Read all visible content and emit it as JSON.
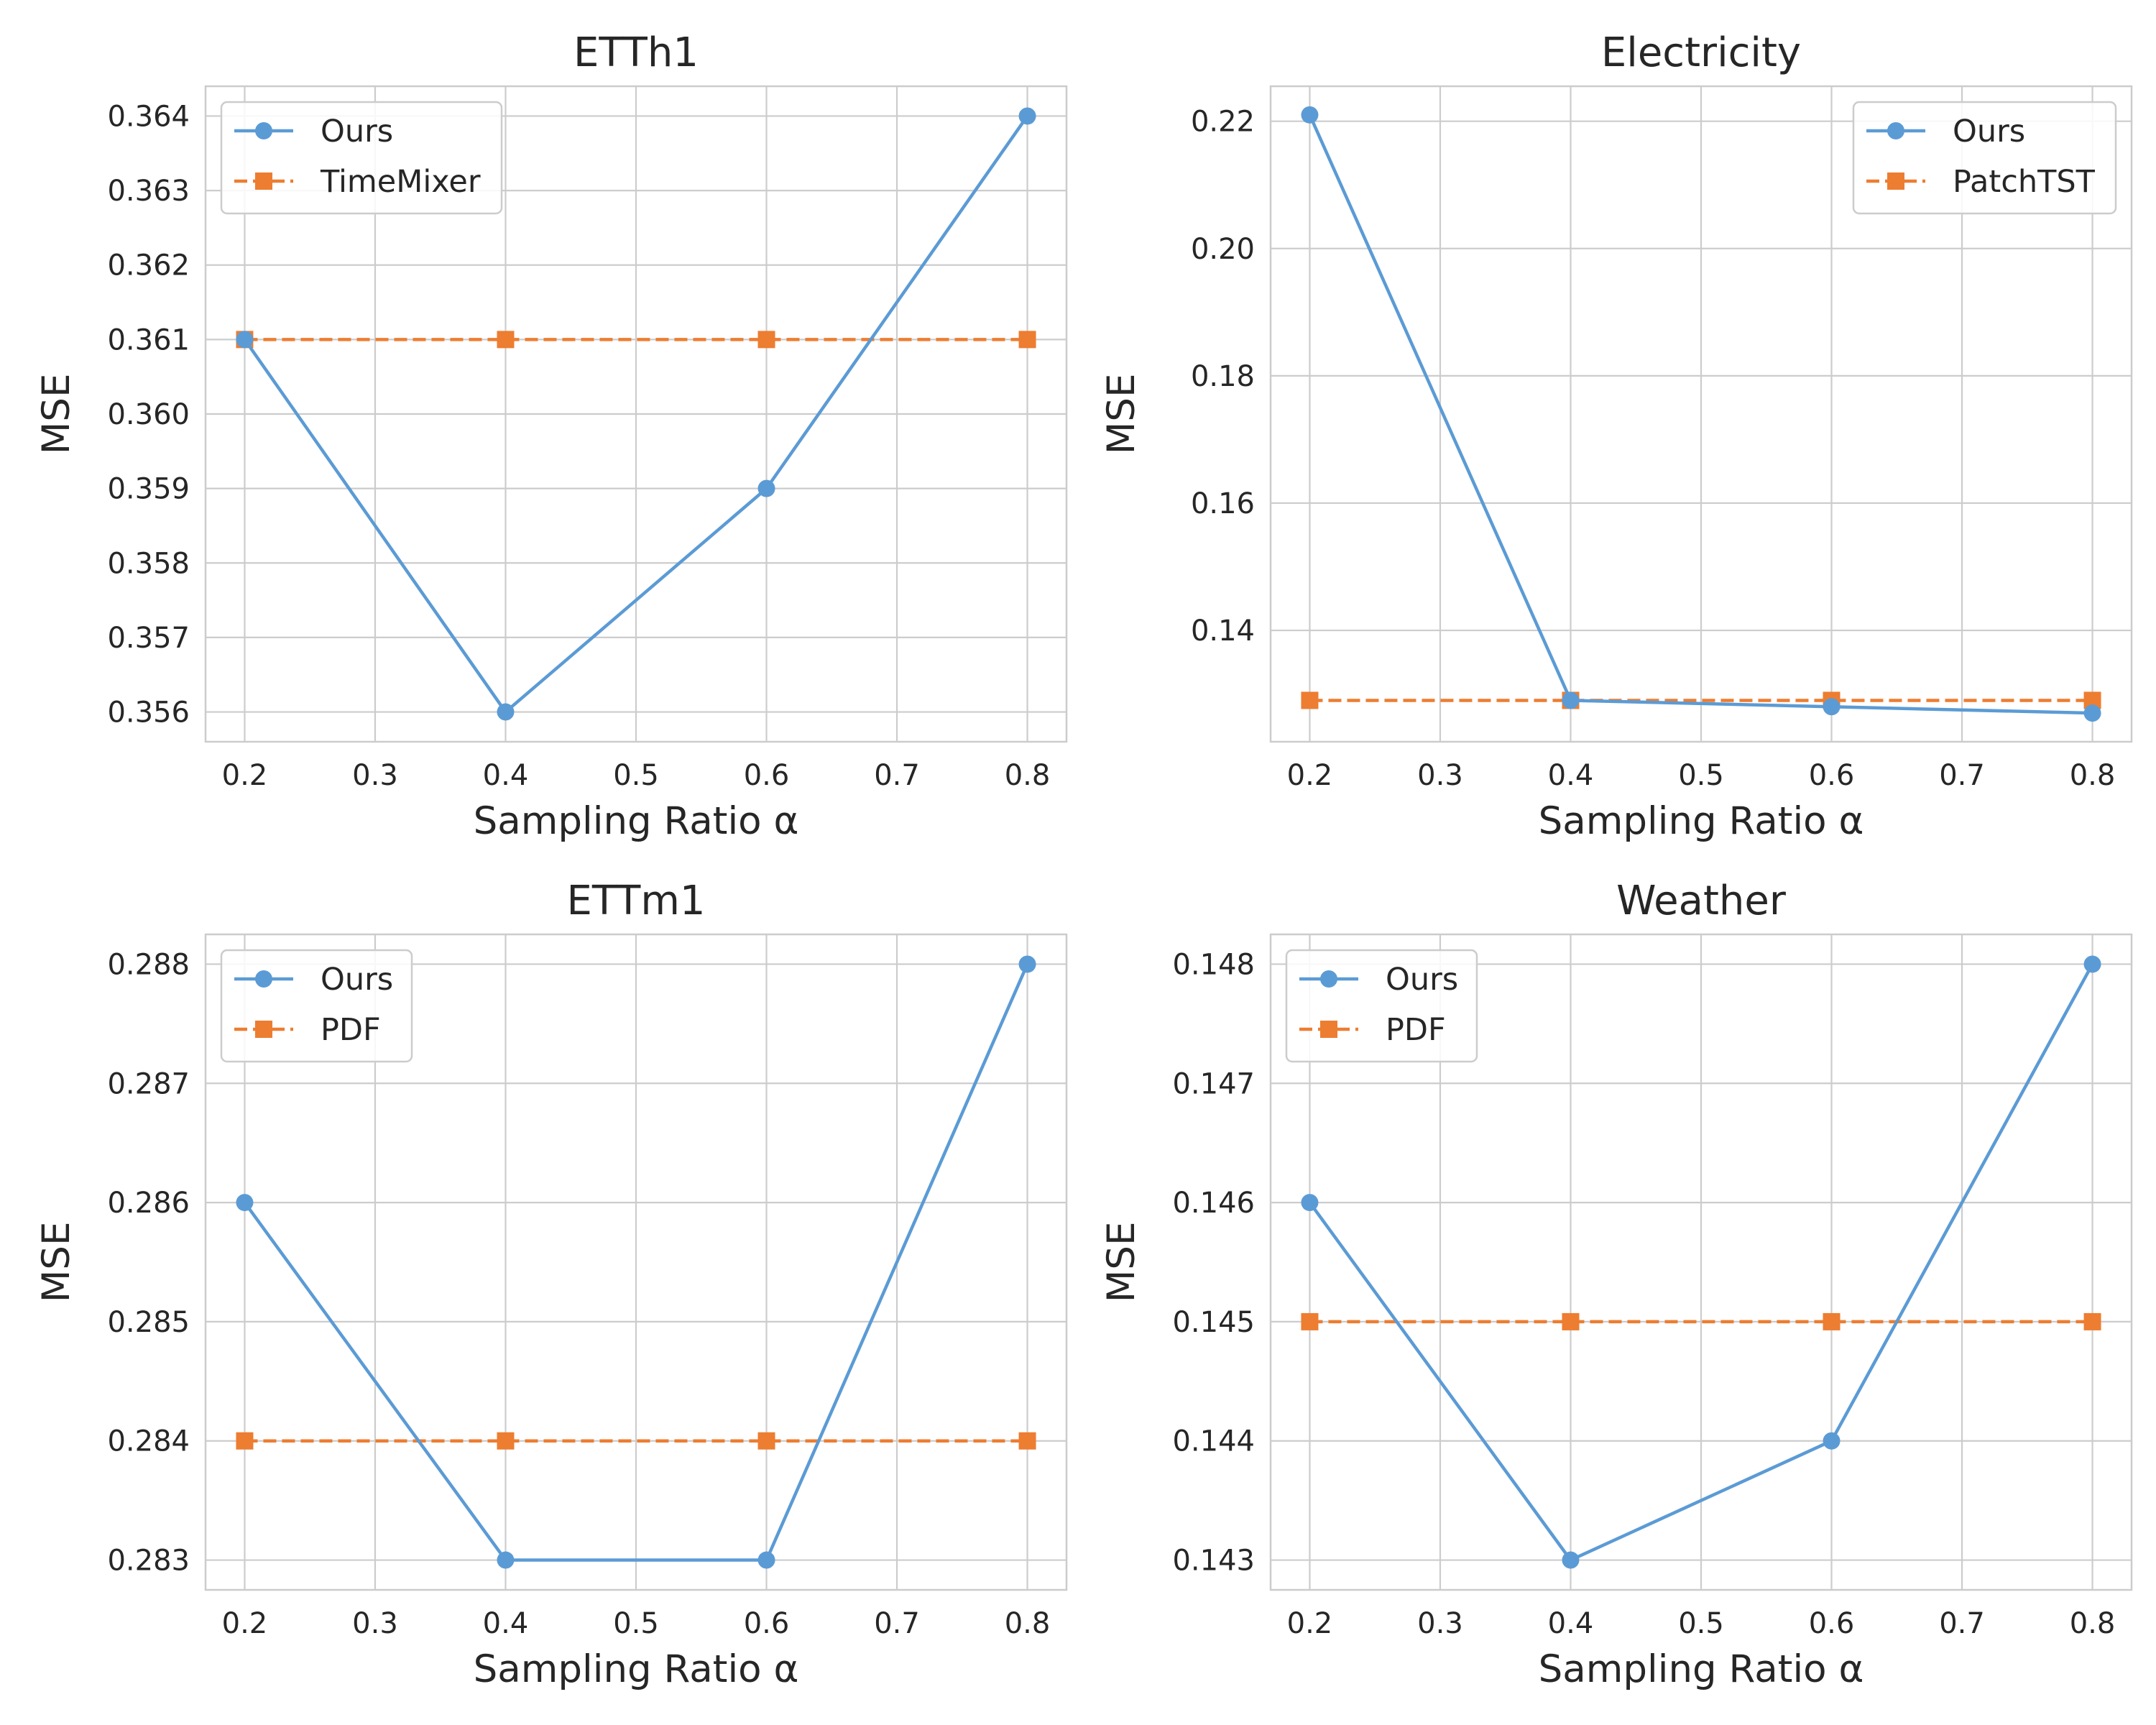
{
  "figure": {
    "name": "sampling-ratio-sensitivity"
  },
  "colors": {
    "ours": "#5b9bd5",
    "baseline": "#ed7d31",
    "grid": "#cccccc",
    "frame": "#cccccc",
    "text": "#262626"
  },
  "chart_data": [
    {
      "type": "line",
      "title": "ETTh1",
      "xlabel": "Sampling Ratio α",
      "ylabel": "MSE",
      "x": [
        0.2,
        0.4,
        0.6,
        0.8
      ],
      "xticks": [
        "0.2",
        "0.3",
        "0.4",
        "0.5",
        "0.6",
        "0.7",
        "0.8"
      ],
      "xlim": [
        0.17,
        0.83
      ],
      "ylim": [
        0.3556,
        0.3644
      ],
      "yticks": [
        "0.356",
        "0.357",
        "0.358",
        "0.359",
        "0.360",
        "0.361",
        "0.362",
        "0.363",
        "0.364"
      ],
      "legend_position": "top-left",
      "grid": true,
      "series": [
        {
          "name": "Ours",
          "style": "solid",
          "marker": "circle",
          "values": [
            0.361,
            0.356,
            0.359,
            0.364
          ]
        },
        {
          "name": "TimeMixer",
          "style": "dashed",
          "marker": "square",
          "values": [
            0.361,
            0.361,
            0.361,
            0.361
          ]
        }
      ]
    },
    {
      "type": "line",
      "title": "Electricity",
      "xlabel": "Sampling Ratio α",
      "ylabel": "MSE",
      "x": [
        0.2,
        0.4,
        0.6,
        0.8
      ],
      "xticks": [
        "0.2",
        "0.3",
        "0.4",
        "0.5",
        "0.6",
        "0.7",
        "0.8"
      ],
      "xlim": [
        0.17,
        0.83
      ],
      "ylim": [
        0.1225,
        0.2255
      ],
      "yticks": [
        "0.14",
        "0.16",
        "0.18",
        "0.20",
        "0.22"
      ],
      "legend_position": "top-right",
      "grid": true,
      "series": [
        {
          "name": "Ours",
          "style": "solid",
          "marker": "circle",
          "values": [
            0.221,
            0.129,
            0.128,
            0.127
          ]
        },
        {
          "name": "PatchTST",
          "style": "dashed",
          "marker": "square",
          "values": [
            0.129,
            0.129,
            0.129,
            0.129
          ]
        }
      ]
    },
    {
      "type": "line",
      "title": "ETTm1",
      "xlabel": "Sampling Ratio α",
      "ylabel": "MSE",
      "x": [
        0.2,
        0.4,
        0.6,
        0.8
      ],
      "xticks": [
        "0.2",
        "0.3",
        "0.4",
        "0.5",
        "0.6",
        "0.7",
        "0.8"
      ],
      "xlim": [
        0.17,
        0.83
      ],
      "ylim": [
        0.28275,
        0.28825
      ],
      "yticks": [
        "0.283",
        "0.284",
        "0.285",
        "0.286",
        "0.287",
        "0.288"
      ],
      "legend_position": "top-left",
      "grid": true,
      "series": [
        {
          "name": "Ours",
          "style": "solid",
          "marker": "circle",
          "values": [
            0.286,
            0.283,
            0.283,
            0.288
          ]
        },
        {
          "name": "PDF",
          "style": "dashed",
          "marker": "square",
          "values": [
            0.284,
            0.284,
            0.284,
            0.284
          ]
        }
      ]
    },
    {
      "type": "line",
      "title": "Weather",
      "xlabel": "Sampling Ratio α",
      "ylabel": "MSE",
      "x": [
        0.2,
        0.4,
        0.6,
        0.8
      ],
      "xticks": [
        "0.2",
        "0.3",
        "0.4",
        "0.5",
        "0.6",
        "0.7",
        "0.8"
      ],
      "xlim": [
        0.17,
        0.83
      ],
      "ylim": [
        0.14275,
        0.14825
      ],
      "yticks": [
        "0.143",
        "0.144",
        "0.145",
        "0.146",
        "0.147",
        "0.148"
      ],
      "legend_position": "top-left",
      "grid": true,
      "series": [
        {
          "name": "Ours",
          "style": "solid",
          "marker": "circle",
          "values": [
            0.146,
            0.143,
            0.144,
            0.148
          ]
        },
        {
          "name": "PDF",
          "style": "dashed",
          "marker": "square",
          "values": [
            0.145,
            0.145,
            0.145,
            0.145
          ]
        }
      ]
    }
  ]
}
